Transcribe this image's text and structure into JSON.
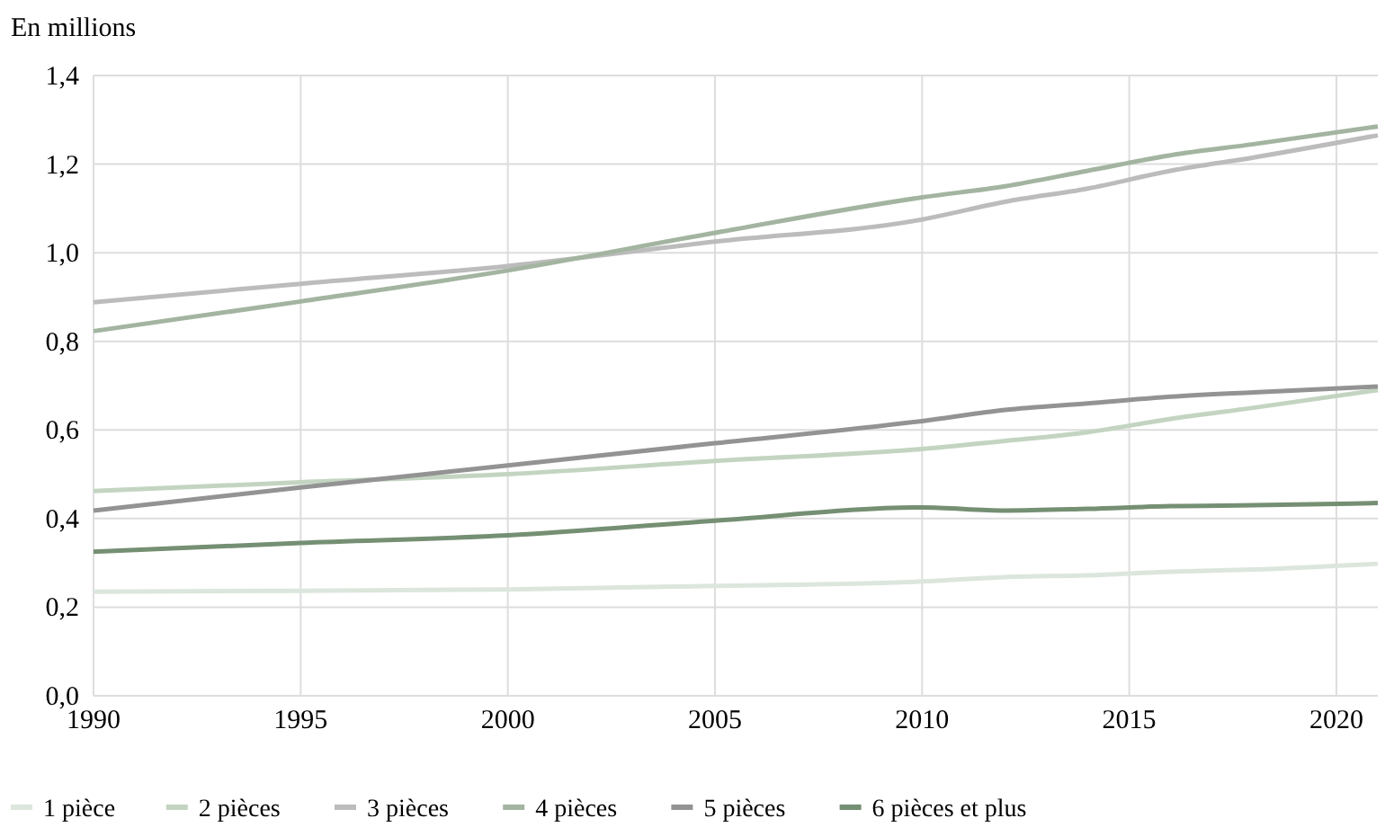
{
  "chart_data": {
    "type": "line",
    "ylabel": "En millions",
    "x": [
      1990,
      1995,
      2000,
      2005,
      2010,
      2012,
      2014,
      2016,
      2018,
      2021
    ],
    "xlim": [
      1990,
      2021
    ],
    "xticks": [
      1990,
      1995,
      2000,
      2005,
      2010,
      2015,
      2020
    ],
    "ylim": [
      0,
      1.4
    ],
    "yticks": [
      {
        "value": 0,
        "label": "0,0"
      },
      {
        "value": 0.2,
        "label": "0,2"
      },
      {
        "value": 0.4,
        "label": "0,4"
      },
      {
        "value": 0.6,
        "label": "0,6"
      },
      {
        "value": 0.8,
        "label": "0,8"
      },
      {
        "value": 1,
        "label": "1,0"
      },
      {
        "value": 1.2,
        "label": "1,2"
      },
      {
        "value": 1.4,
        "label": "1,4"
      }
    ],
    "grid": true,
    "legend": "bottom",
    "marker": "none",
    "line_style": "solid",
    "series": [
      {
        "name": "1 pièce",
        "color": "#dce6dc",
        "values": [
          0.235,
          0.237,
          0.24,
          0.248,
          0.258,
          0.268,
          0.272,
          0.28,
          0.285,
          0.298
        ]
      },
      {
        "name": "2 pièces",
        "color": "#c3d5c1",
        "values": [
          0.462,
          0.482,
          0.5,
          0.53,
          0.557,
          0.575,
          0.595,
          0.625,
          0.65,
          0.69
        ]
      },
      {
        "name": "3 pièces",
        "color": "#bcbcbc",
        "values": [
          0.888,
          0.93,
          0.97,
          1.025,
          1.075,
          1.115,
          1.145,
          1.185,
          1.215,
          1.265
        ]
      },
      {
        "name": "4 pièces",
        "color": "#a3b5a0",
        "values": [
          0.823,
          0.89,
          0.96,
          1.045,
          1.125,
          1.15,
          1.185,
          1.22,
          1.245,
          1.285
        ]
      },
      {
        "name": "5 pièces",
        "color": "#939393",
        "values": [
          0.418,
          0.47,
          0.52,
          0.57,
          0.62,
          0.645,
          0.66,
          0.675,
          0.685,
          0.698
        ]
      },
      {
        "name": "6 pièces et plus",
        "color": "#758f73",
        "values": [
          0.325,
          0.345,
          0.362,
          0.395,
          0.425,
          0.418,
          0.422,
          0.428,
          0.43,
          0.435
        ]
      }
    ]
  }
}
